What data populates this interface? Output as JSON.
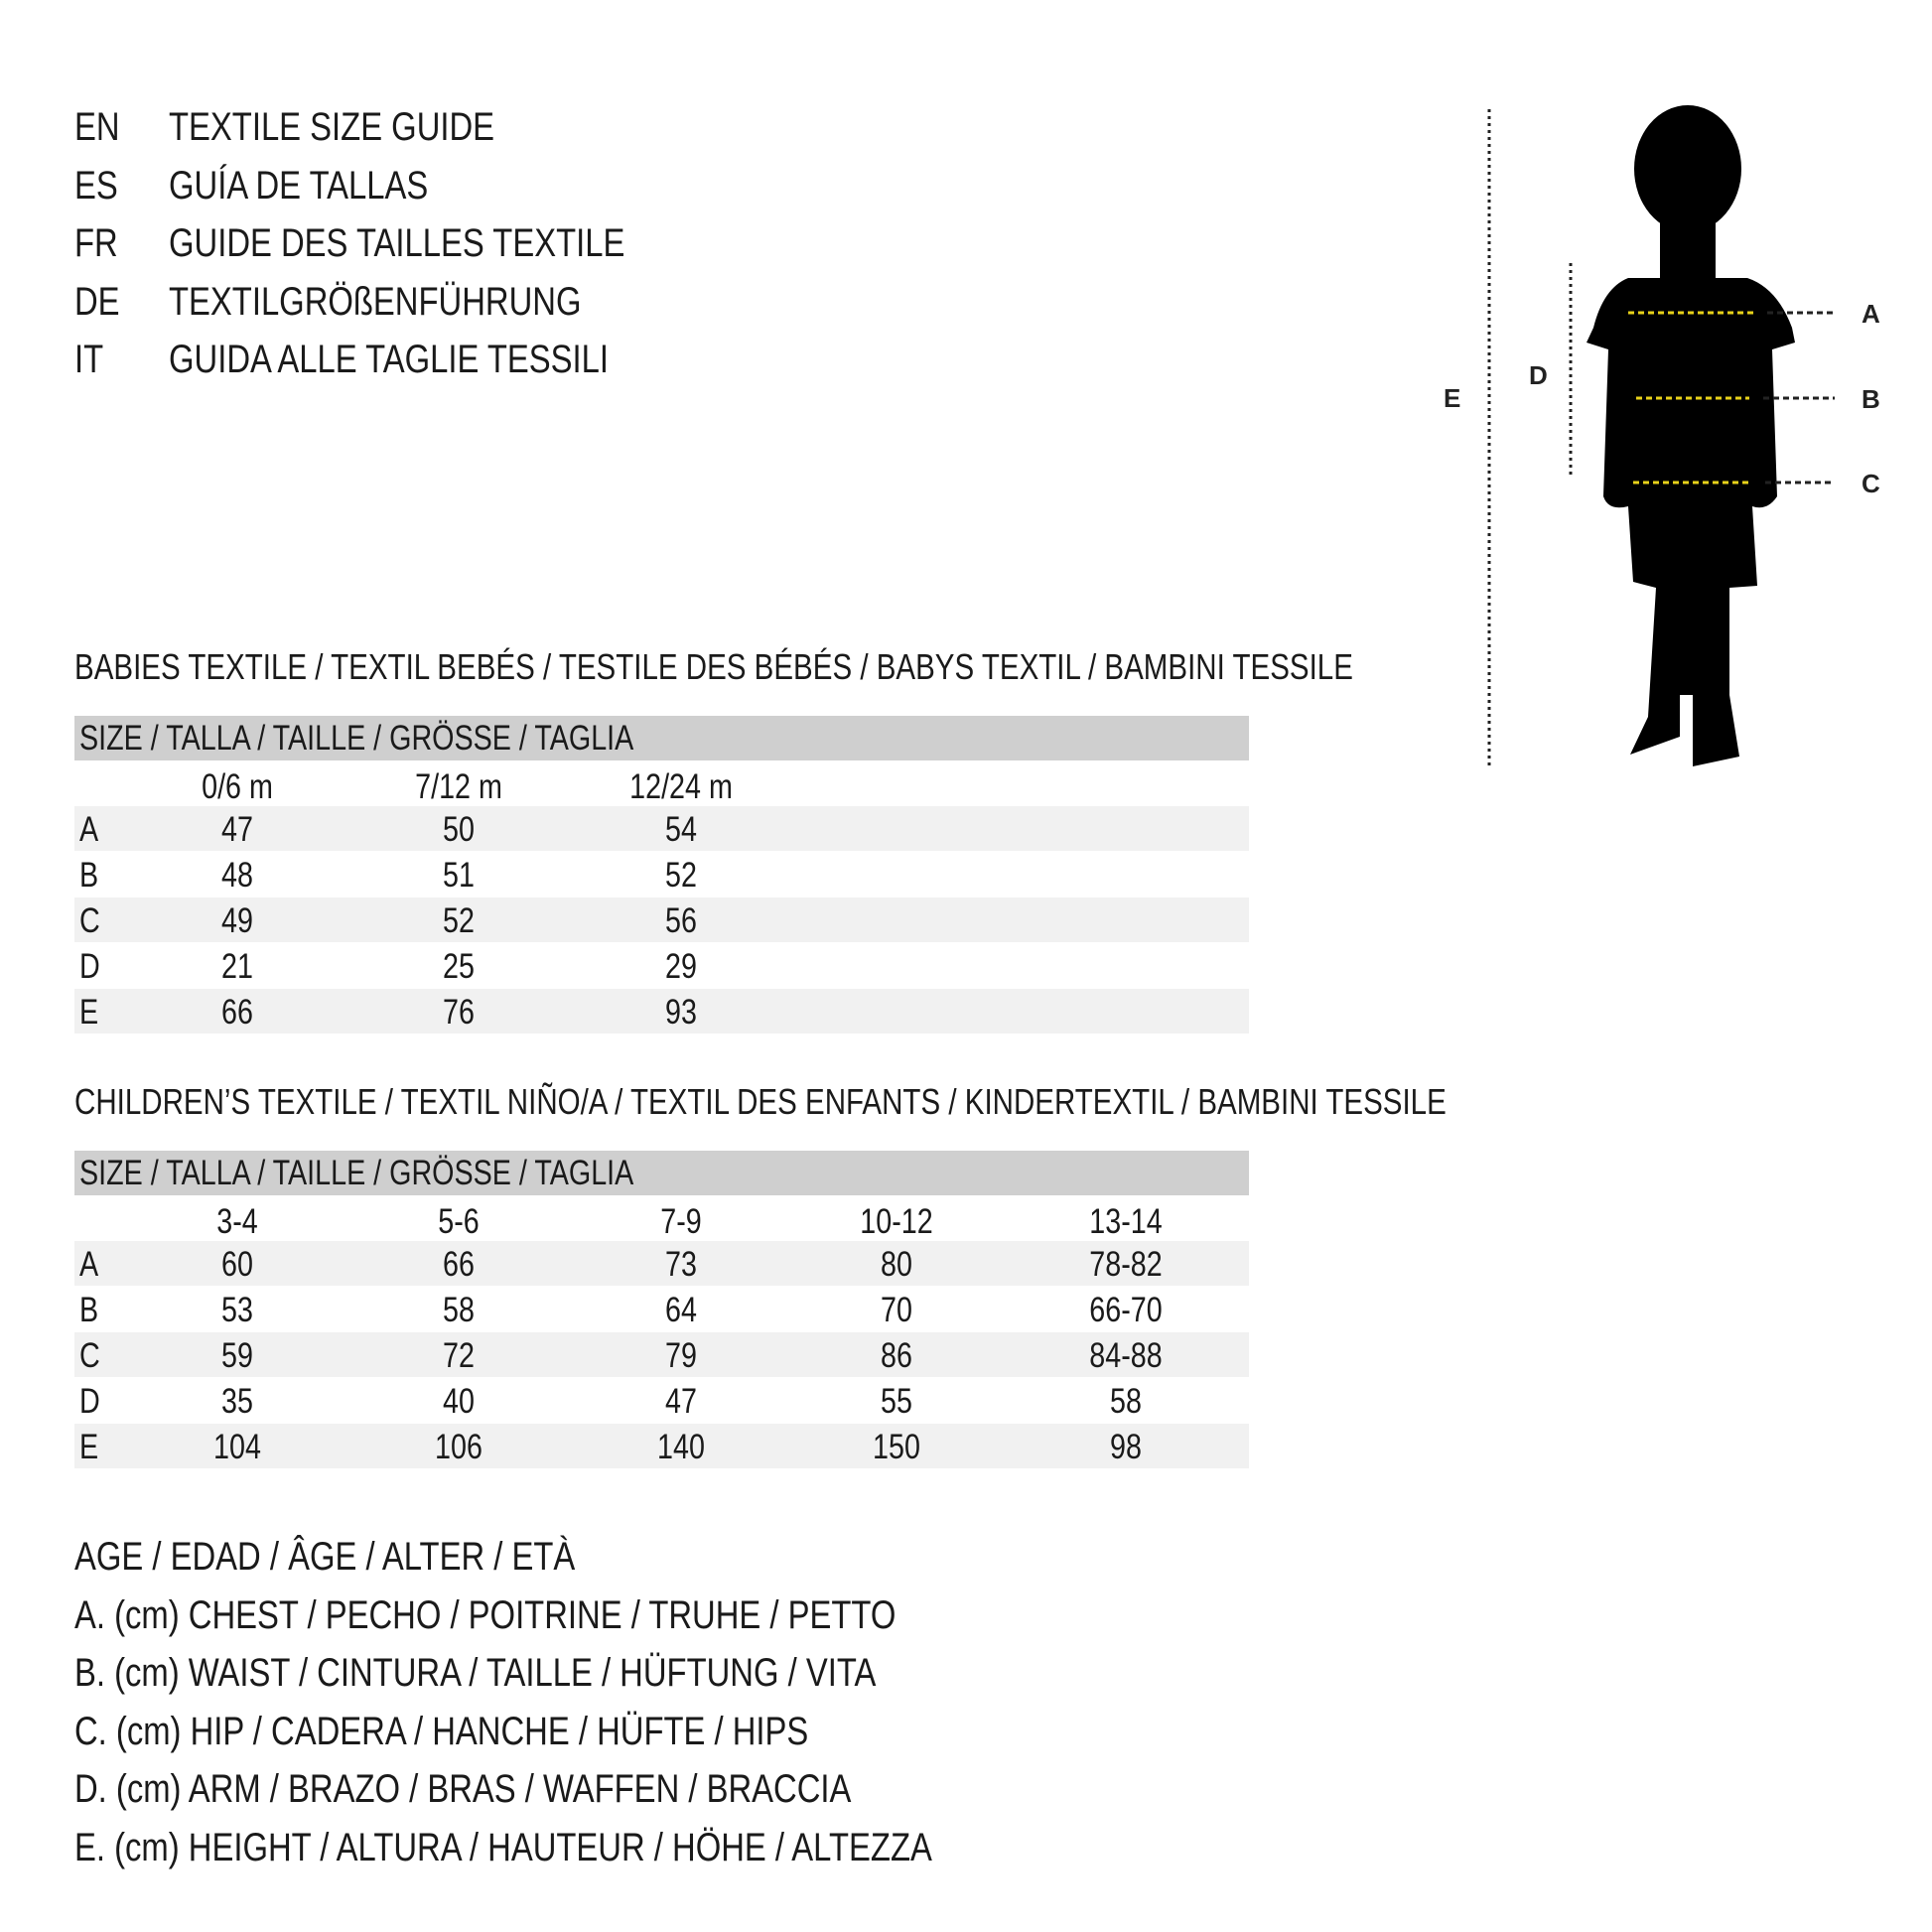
{
  "headings": [
    {
      "code": "EN",
      "text": "TEXTILE SIZE GUIDE"
    },
    {
      "code": "ES",
      "text": "GUÍA DE TALLAS"
    },
    {
      "code": "FR",
      "text": "GUIDE DES TAILLES TEXTILE"
    },
    {
      "code": "DE",
      "text": "TEXTILGRÖßENFÜHRUNG"
    },
    {
      "code": "IT",
      "text": "GUIDA ALLE TAGLIE TESSILI"
    }
  ],
  "babies": {
    "title": "BABIES TEXTILE / TEXTIL BEBÉS / TESTILE DES BÉBÉS / BABYS TEXTIL / BAMBINI TESSILE",
    "size_header": "SIZE / TALLA / TAILLE / GRÖSSE / TAGLIA",
    "columns": [
      "0/6 m",
      "7/12 m",
      "12/24 m"
    ],
    "rows": [
      {
        "label": "A",
        "values": [
          "47",
          "50",
          "54"
        ]
      },
      {
        "label": "B",
        "values": [
          "48",
          "51",
          "52"
        ]
      },
      {
        "label": "C",
        "values": [
          "49",
          "52",
          "56"
        ]
      },
      {
        "label": "D",
        "values": [
          "21",
          "25",
          "29"
        ]
      },
      {
        "label": "E",
        "values": [
          "66",
          "76",
          "93"
        ]
      }
    ]
  },
  "children": {
    "title": "CHILDREN’S TEXTILE / TEXTIL NIÑO/A / TEXTIL DES ENFANTS / KINDERTEXTIL / BAMBINI TESSILE",
    "size_header": "SIZE / TALLA / TAILLE / GRÖSSE / TAGLIA",
    "columns": [
      "3-4",
      "5-6",
      "7-9",
      "10-12",
      "13-14"
    ],
    "rows": [
      {
        "label": "A",
        "values": [
          "60",
          "66",
          "73",
          "80",
          "78-82"
        ]
      },
      {
        "label": "B",
        "values": [
          "53",
          "58",
          "64",
          "70",
          "66-70"
        ]
      },
      {
        "label": "C",
        "values": [
          "59",
          "72",
          "79",
          "86",
          "84-88"
        ]
      },
      {
        "label": "D",
        "values": [
          "35",
          "40",
          "47",
          "55",
          "58"
        ]
      },
      {
        "label": "E",
        "values": [
          "104",
          "106",
          "140",
          "150",
          "98"
        ]
      }
    ]
  },
  "legend": [
    "AGE / EDAD / ÂGE / ALTER / ETÀ",
    "A. (cm) CHEST / PECHO / POITRINE / TRUHE / PETTO",
    "B. (cm) WAIST / CINTURA / TAILLE / HÜFTUNG / VITA",
    "C. (cm) HIP / CADERA / HANCHE / HÜFTE / HIPS",
    "D. (cm) ARM / BRAZO / BRAS / WAFFEN / BRACCIA",
    "E. (cm) HEIGHT / ALTURA / HAUTEUR / HÖHE / ALTEZZA"
  ],
  "figure": {
    "labels": {
      "A": "A",
      "B": "B",
      "C": "C",
      "D": "D",
      "E": "E"
    },
    "measure_color": "#e8d21a",
    "silhouette_color": "#000000"
  }
}
